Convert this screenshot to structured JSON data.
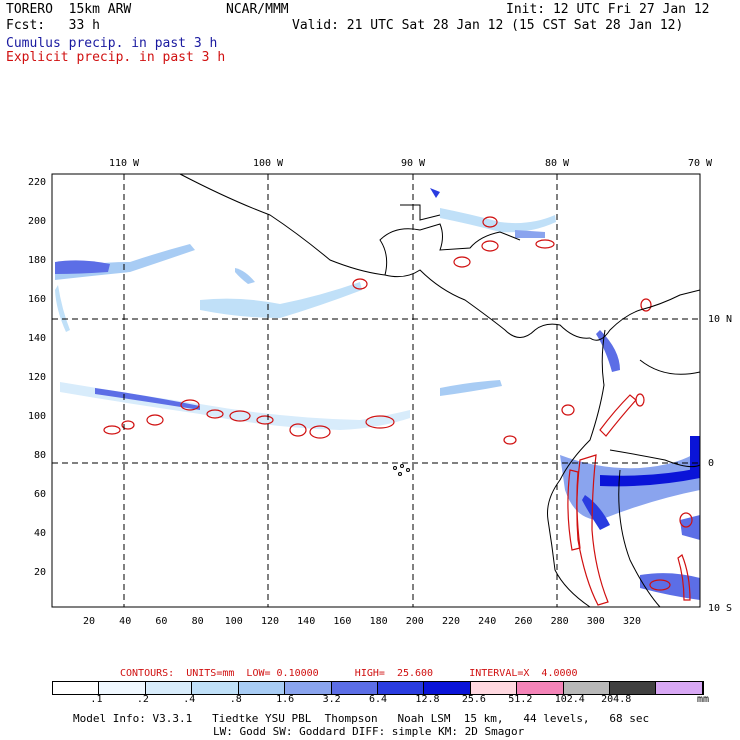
{
  "header": {
    "model": "TORERO  15km ARW",
    "org": "NCAR/MMM",
    "init": "Init: 12 UTC Fri 27 Jan 12",
    "fcst": "Fcst:   33 h",
    "valid": "Valid: 21 UTC Sat 28 Jan 12 (15 CST Sat 28 Jan 12)",
    "field1": "Cumulus precip. in past 3 h",
    "field2": "Explicit precip. in past 3 h"
  },
  "colors": {
    "field1": "#1a1aa0",
    "field2": "#d01010"
  },
  "map": {
    "top_lon_labels": [
      "110 W",
      "100 W",
      "90 W",
      "80 W",
      "70 W"
    ],
    "right_lat_labels": [
      "10 N",
      "0",
      "10 S"
    ],
    "y_ticks": [
      "220",
      "200",
      "180",
      "160",
      "140",
      "120",
      "100",
      "80",
      "60",
      "40",
      "20"
    ],
    "x_ticks": [
      "20",
      "40",
      "60",
      "80",
      "100",
      "120",
      "140",
      "160",
      "180",
      "200",
      "220",
      "240",
      "260",
      "280",
      "300",
      "320"
    ]
  },
  "contours_text": "CONTOURS:  UNITS=mm  LOW= 0.10000      HIGH=  25.600      INTERVAL=X  4.0000",
  "legend": {
    "unit": "mm",
    "values": [
      ".1",
      ".2",
      ".4",
      ".8",
      "1.6",
      "3.2",
      "6.4",
      "12.8",
      "25.6",
      "51.2",
      "102.4",
      "204.8"
    ],
    "colors": [
      "#ffffff",
      "#f0f8ff",
      "#d8ecfb",
      "#c0e0f8",
      "#a8ccf4",
      "#8aa4ee",
      "#5c6ee6",
      "#2a3ce0",
      "#0a14d8",
      "#ffd8e0",
      "#f484b8",
      "#b8b8b8",
      "#404040",
      "#d8a8f4"
    ]
  },
  "model_info": {
    "line1": "Model Info: V3.3.1   Tiedtke YSU PBL  Thompson   Noah LSM  15 km,   44 levels,   68 sec",
    "line2": "LW: Godd SW: Goddard DIFF: simple KM: 2D Smagor"
  }
}
